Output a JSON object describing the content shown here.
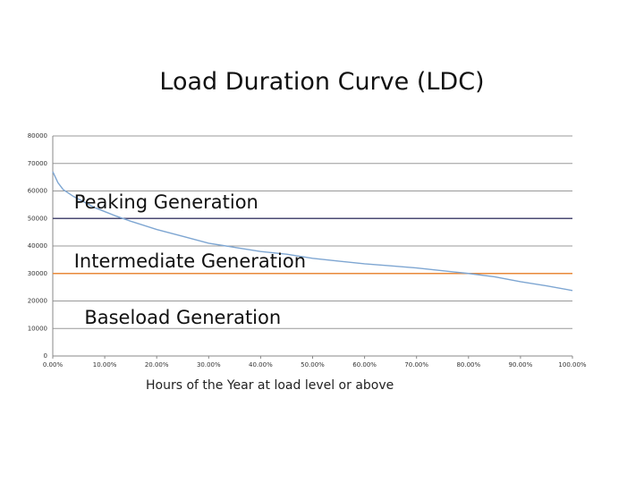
{
  "chart_data": {
    "type": "line",
    "title": "Load Duration Curve (LDC)",
    "xlabel": "Hours of the Year at load level or above",
    "ylabel": "",
    "xlim": [
      0,
      100
    ],
    "ylim": [
      0,
      80000
    ],
    "grid": true,
    "x_ticks": [
      "0.00%",
      "10.00%",
      "20.00%",
      "30.00%",
      "40.00%",
      "50.00%",
      "60.00%",
      "70.00%",
      "80.00%",
      "90.00%",
      "100.00%"
    ],
    "y_ticks": [
      "0",
      "10000",
      "20000",
      "30000",
      "40000",
      "50000",
      "60000",
      "70000",
      "80000"
    ],
    "series": [
      {
        "x": [
          0,
          1,
          2,
          4,
          6,
          8,
          10,
          12,
          15,
          20,
          25,
          30,
          35,
          40,
          45,
          50,
          55,
          60,
          65,
          70,
          75,
          80,
          85,
          90,
          95,
          100
        ],
        "y": [
          67000,
          63000,
          60500,
          58000,
          56000,
          54000,
          52500,
          51000,
          49000,
          46000,
          43500,
          41000,
          39500,
          38000,
          37000,
          35500,
          34500,
          33500,
          32800,
          32000,
          31000,
          30000,
          28800,
          27000,
          25500,
          23800
        ],
        "color": "#7ea6d2"
      }
    ],
    "reference_lines": [
      {
        "y": 50000,
        "color": "#4b4a73"
      },
      {
        "y": 30000,
        "color": "#e8893a"
      }
    ],
    "annotations": [
      {
        "text": "Peaking Generation",
        "x": 1.5,
        "y": 56000
      },
      {
        "text": "Intermediate Generation",
        "x": 1.5,
        "y": 34500
      },
      {
        "text": "Baseload Generation",
        "x": 3.5,
        "y": 14000
      }
    ]
  }
}
